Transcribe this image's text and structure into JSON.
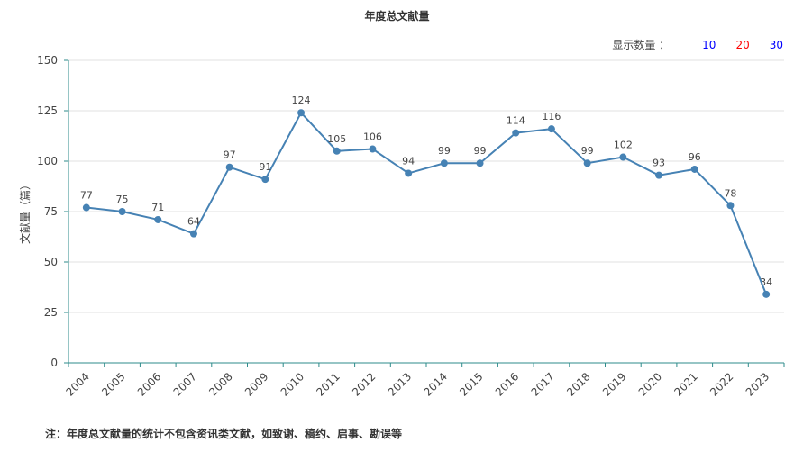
{
  "title": "年度总文献量",
  "display_count": {
    "label": "显示数量 ：",
    "options": [
      {
        "value": "10",
        "color": "#0000ff"
      },
      {
        "value": "20",
        "color": "#ff0000"
      },
      {
        "value": "30",
        "color": "#0000ff"
      }
    ]
  },
  "footnote": "注：年度总文献量的统计不包含资讯类文献，如致谢、稿约、启事、勘误等",
  "colors": {
    "line": "#4682b4",
    "axis": "#2e8b8b",
    "grid": "#e0e0e0"
  },
  "chart_data": {
    "type": "line",
    "ylabel": "文献量（篇）",
    "xlabel": "",
    "ylim": [
      0,
      150
    ],
    "yticks": [
      0,
      25,
      50,
      75,
      100,
      125,
      150
    ],
    "grid": true,
    "categories": [
      "2004",
      "2005",
      "2006",
      "2007",
      "2008",
      "2009",
      "2010",
      "2011",
      "2012",
      "2013",
      "2014",
      "2015",
      "2016",
      "2017",
      "2018",
      "2019",
      "2020",
      "2021",
      "2022",
      "2023"
    ],
    "series": [
      {
        "values": [
          77,
          75,
          71,
          64,
          97,
          91,
          124,
          105,
          106,
          94,
          99,
          99,
          114,
          116,
          99,
          102,
          93,
          96,
          78,
          34
        ]
      }
    ]
  }
}
